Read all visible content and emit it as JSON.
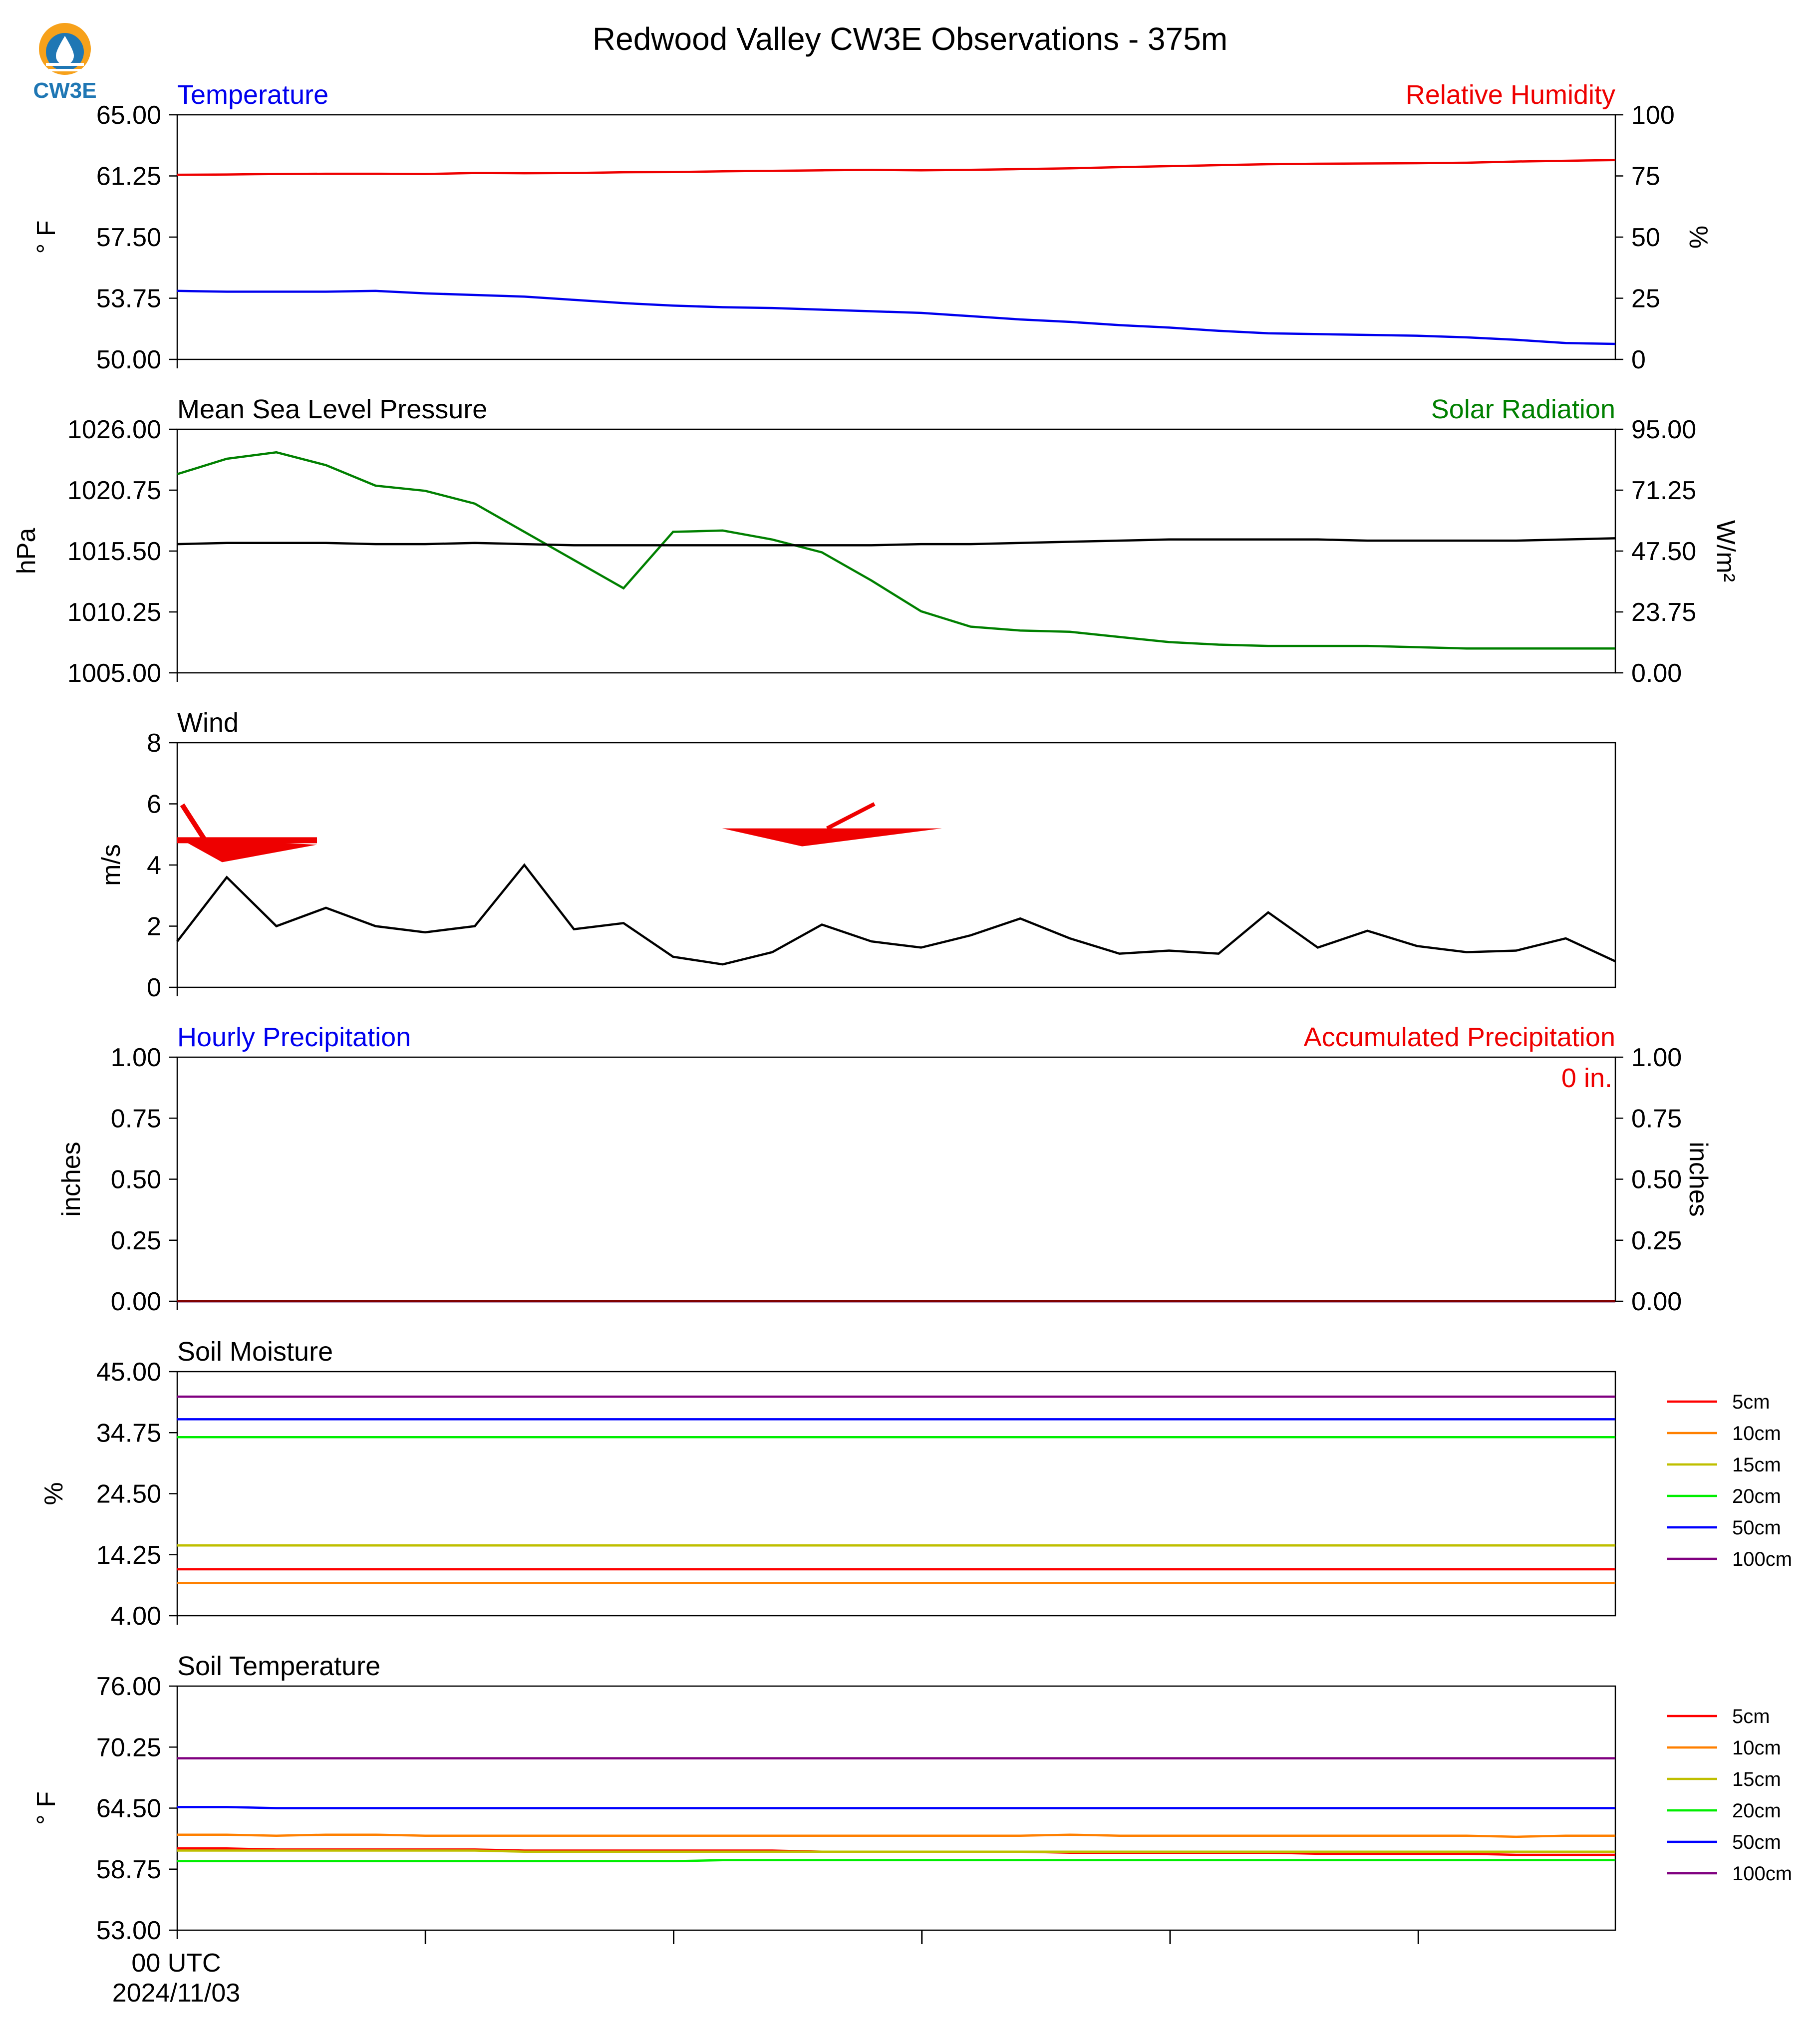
{
  "title": "Redwood Valley CW3E Observations - 375m",
  "logo": {
    "text": "CW3E",
    "icon": "cw3e-drop-logo-icon"
  },
  "time_axis": {
    "label": "00 UTC",
    "date": "2024/11/03",
    "n_points": 30
  },
  "colors": {
    "blue": "#0000ee",
    "red": "#ee0000",
    "green": "#008000",
    "black": "#000000",
    "soil_5cm": "#ff0000",
    "soil_10cm": "#ff8000",
    "soil_15cm": "#bfbf00",
    "soil_20cm": "#00ee00",
    "soil_50cm": "#0000ff",
    "soil_100cm": "#800080"
  },
  "chart_data": [
    {
      "type": "line",
      "title_left": "Temperature",
      "title_right": "Relative Humidity",
      "ylabel_left": "° F",
      "ylabel_right": "%",
      "ylim_left": [
        50,
        65
      ],
      "ylim_right": [
        0,
        100
      ],
      "yticks_left": [
        "50.00",
        "53.75",
        "57.50",
        "61.25",
        "65.00"
      ],
      "yticks_right": [
        "0",
        "25",
        "50",
        "75",
        "100"
      ],
      "series": [
        {
          "axis": "right",
          "color": "#ee0000",
          "values": [
            75.5,
            75.6,
            75.8,
            75.9,
            75.9,
            75.8,
            76.2,
            76.1,
            76.2,
            76.5,
            76.6,
            76.9,
            77.1,
            77.3,
            77.5,
            77.3,
            77.5,
            77.8,
            78.1,
            78.6,
            79.0,
            79.4,
            79.8,
            80.0,
            80.1,
            80.2,
            80.4,
            80.9,
            81.2,
            81.5
          ]
        },
        {
          "axis": "left",
          "color": "#0000ee",
          "values": [
            54.2,
            54.15,
            54.15,
            54.15,
            54.2,
            54.05,
            53.95,
            53.85,
            53.65,
            53.45,
            53.3,
            53.2,
            53.15,
            53.05,
            52.95,
            52.85,
            52.65,
            52.45,
            52.3,
            52.1,
            51.95,
            51.75,
            51.6,
            51.55,
            51.5,
            51.45,
            51.35,
            51.2,
            51.0,
            50.95
          ]
        }
      ]
    },
    {
      "type": "line",
      "title_left": "Mean Sea Level Pressure",
      "title_right": "Solar Radiation",
      "ylabel_left": "hPa",
      "ylabel_right": "W/m²",
      "ylim_left": [
        1005,
        1026
      ],
      "ylim_right": [
        0,
        95
      ],
      "yticks_left": [
        "1005.00",
        "1010.25",
        "1015.50",
        "1020.75",
        "1026.00"
      ],
      "yticks_right": [
        "0.00",
        "23.75",
        "47.50",
        "71.25",
        "95.00"
      ],
      "series": [
        {
          "axis": "right",
          "color": "#008000",
          "values": [
            77.5,
            83.5,
            86,
            81,
            73,
            71,
            66,
            55,
            44,
            33,
            55,
            55.5,
            52,
            47,
            36,
            24,
            18,
            16.5,
            16,
            14,
            12,
            11,
            10.5,
            10.5,
            10.5,
            10,
            9.5,
            9.5,
            9.5,
            9.5
          ]
        },
        {
          "axis": "left",
          "color": "#000000",
          "values": [
            1016.1,
            1016.2,
            1016.2,
            1016.2,
            1016.1,
            1016.1,
            1016.2,
            1016.1,
            1016.0,
            1016.0,
            1016.0,
            1016.0,
            1016.0,
            1016.0,
            1016.0,
            1016.1,
            1016.1,
            1016.2,
            1016.3,
            1016.4,
            1016.5,
            1016.5,
            1016.5,
            1016.5,
            1016.4,
            1016.4,
            1016.4,
            1016.4,
            1016.5,
            1016.6
          ]
        }
      ]
    },
    {
      "type": "line",
      "title_left": "Wind",
      "ylabel_left": "m/s",
      "ylim_left": [
        0,
        8
      ],
      "yticks_left": [
        "0",
        "2",
        "4",
        "6",
        "8"
      ],
      "series": [
        {
          "axis": "left",
          "color": "#000000",
          "values": [
            1.5,
            3.6,
            2.0,
            2.6,
            2.0,
            1.8,
            2.0,
            4.0,
            1.9,
            2.1,
            1.0,
            0.75,
            1.15,
            2.05,
            1.5,
            1.3,
            1.7,
            2.25,
            1.6,
            1.1,
            1.2,
            1.1,
            2.45,
            1.3,
            1.85,
            1.35,
            1.15,
            1.2,
            1.6,
            0.85
          ]
        }
      ],
      "barbs": [
        {
          "time_index": 0,
          "direction": "east",
          "flag": true,
          "barb": true,
          "color": "#ee0000"
        },
        {
          "time_index": 12.5,
          "direction": "west",
          "flag": true,
          "barb": true,
          "color": "#ee0000"
        }
      ]
    },
    {
      "type": "line",
      "title_left": "Hourly Precipitation",
      "title_right": "Accumulated Precipitation",
      "ylabel_left": "inches",
      "ylabel_right": "inches",
      "ylim_left": [
        0,
        1
      ],
      "ylim_right": [
        0,
        1
      ],
      "yticks_left": [
        "0.00",
        "0.25",
        "0.50",
        "0.75",
        "1.00"
      ],
      "yticks_right": [
        "0.00",
        "0.25",
        "0.50",
        "0.75",
        "1.00"
      ],
      "annotation": "0 in.",
      "series": [
        {
          "axis": "left",
          "color": "#0000ee",
          "values": [
            0,
            0,
            0,
            0,
            0,
            0,
            0,
            0,
            0,
            0,
            0,
            0,
            0,
            0,
            0,
            0,
            0,
            0,
            0,
            0,
            0,
            0,
            0,
            0,
            0,
            0,
            0,
            0,
            0,
            0
          ]
        },
        {
          "axis": "right",
          "color": "#800000",
          "values": [
            0,
            0,
            0,
            0,
            0,
            0,
            0,
            0,
            0,
            0,
            0,
            0,
            0,
            0,
            0,
            0,
            0,
            0,
            0,
            0,
            0,
            0,
            0,
            0,
            0,
            0,
            0,
            0,
            0,
            0
          ]
        }
      ]
    },
    {
      "type": "line",
      "title_left": "Soil Moisture",
      "ylabel_left": "%",
      "ylim_left": [
        4,
        45
      ],
      "yticks_left": [
        "4.00",
        "14.25",
        "24.50",
        "34.75",
        "45.00"
      ],
      "legend": [
        "5cm",
        "10cm",
        "15cm",
        "20cm",
        "50cm",
        "100cm"
      ],
      "series": [
        {
          "name": "5cm",
          "color": "#ff0000",
          "constant": 11.8
        },
        {
          "name": "10cm",
          "color": "#ff8000",
          "constant": 9.5
        },
        {
          "name": "15cm",
          "color": "#bfbf00",
          "constant": 15.8
        },
        {
          "name": "20cm",
          "color": "#00ee00",
          "constant": 34.0
        },
        {
          "name": "50cm",
          "color": "#0000ff",
          "constant": 37.0
        },
        {
          "name": "100cm",
          "color": "#800080",
          "constant": 40.8
        }
      ]
    },
    {
      "type": "line",
      "title_left": "Soil Temperature",
      "ylabel_left": "° F",
      "ylim_left": [
        53,
        76
      ],
      "yticks_left": [
        "53.00",
        "58.75",
        "64.50",
        "70.25",
        "76.00"
      ],
      "legend": [
        "5cm",
        "10cm",
        "15cm",
        "20cm",
        "50cm",
        "100cm"
      ],
      "series": [
        {
          "name": "5cm",
          "color": "#ff0000",
          "values": [
            60.7,
            60.7,
            60.6,
            60.6,
            60.6,
            60.6,
            60.6,
            60.5,
            60.5,
            60.5,
            60.5,
            60.5,
            60.5,
            60.4,
            60.4,
            60.4,
            60.4,
            60.4,
            60.3,
            60.3,
            60.3,
            60.3,
            60.3,
            60.2,
            60.2,
            60.2,
            60.2,
            60.1,
            60.1,
            60.1
          ]
        },
        {
          "name": "10cm",
          "color": "#ff8000",
          "values": [
            62.0,
            62.0,
            61.9,
            62.0,
            62.0,
            61.9,
            61.9,
            61.9,
            61.9,
            61.9,
            61.9,
            61.9,
            61.9,
            61.9,
            61.9,
            61.9,
            61.9,
            61.9,
            62.0,
            61.9,
            61.9,
            61.9,
            61.9,
            61.9,
            61.9,
            61.9,
            61.9,
            61.8,
            61.9,
            61.9
          ]
        },
        {
          "name": "15cm",
          "color": "#bfbf00",
          "values": [
            60.5,
            60.5,
            60.5,
            60.5,
            60.5,
            60.5,
            60.5,
            60.4,
            60.4,
            60.4,
            60.4,
            60.4,
            60.4,
            60.4,
            60.4,
            60.4,
            60.4,
            60.4,
            60.4,
            60.4,
            60.4,
            60.4,
            60.4,
            60.4,
            60.4,
            60.4,
            60.4,
            60.4,
            60.4,
            60.4
          ]
        },
        {
          "name": "20cm",
          "color": "#00ee00",
          "values": [
            59.5,
            59.5,
            59.5,
            59.5,
            59.5,
            59.5,
            59.5,
            59.5,
            59.5,
            59.5,
            59.5,
            59.6,
            59.6,
            59.6,
            59.6,
            59.6,
            59.6,
            59.6,
            59.6,
            59.6,
            59.6,
            59.6,
            59.6,
            59.6,
            59.6,
            59.6,
            59.6,
            59.6,
            59.6,
            59.6
          ]
        },
        {
          "name": "50cm",
          "color": "#0000ff",
          "values": [
            64.6,
            64.6,
            64.5,
            64.5,
            64.5,
            64.5,
            64.5,
            64.5,
            64.5,
            64.5,
            64.5,
            64.5,
            64.5,
            64.5,
            64.5,
            64.5,
            64.5,
            64.5,
            64.5,
            64.5,
            64.5,
            64.5,
            64.5,
            64.5,
            64.5,
            64.5,
            64.5,
            64.5,
            64.5,
            64.5
          ]
        },
        {
          "name": "100cm",
          "color": "#800080",
          "values": [
            69.2,
            69.2,
            69.2,
            69.2,
            69.2,
            69.2,
            69.2,
            69.2,
            69.2,
            69.2,
            69.2,
            69.2,
            69.2,
            69.2,
            69.2,
            69.2,
            69.2,
            69.2,
            69.2,
            69.2,
            69.2,
            69.2,
            69.2,
            69.2,
            69.2,
            69.2,
            69.2,
            69.2,
            69.2,
            69.2
          ]
        }
      ]
    }
  ]
}
